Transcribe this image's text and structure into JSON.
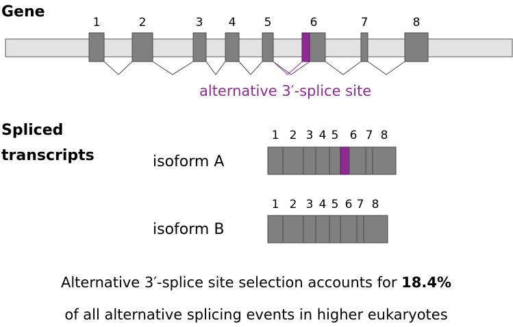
{
  "labels": {
    "gene": "Gene",
    "spliced_line1": "Spliced",
    "spliced_line2": "transcripts",
    "alt_site": "alternative 3′-splice site"
  },
  "exon_numbers": [
    "1",
    "2",
    "3",
    "4",
    "5",
    "6",
    "7",
    "8"
  ],
  "isoforms": [
    {
      "label": "isoform A",
      "numbers": [
        "1",
        "2",
        "3",
        "4",
        "5",
        "6",
        "7",
        "8"
      ]
    },
    {
      "label": "isoform B",
      "numbers": [
        "1",
        "2",
        "3",
        "4",
        "5",
        "6",
        "7",
        "8"
      ]
    }
  ],
  "caption": {
    "line1_text": "Alternative 3′-splice site selection accounts for ",
    "line1_bold": "18.4%",
    "line2": "of all alternative splicing events in higher eukaryotes"
  },
  "colors": {
    "exon": "#808080",
    "alternative": "#8e2a91",
    "gene_bar": "#e3e3e3"
  }
}
